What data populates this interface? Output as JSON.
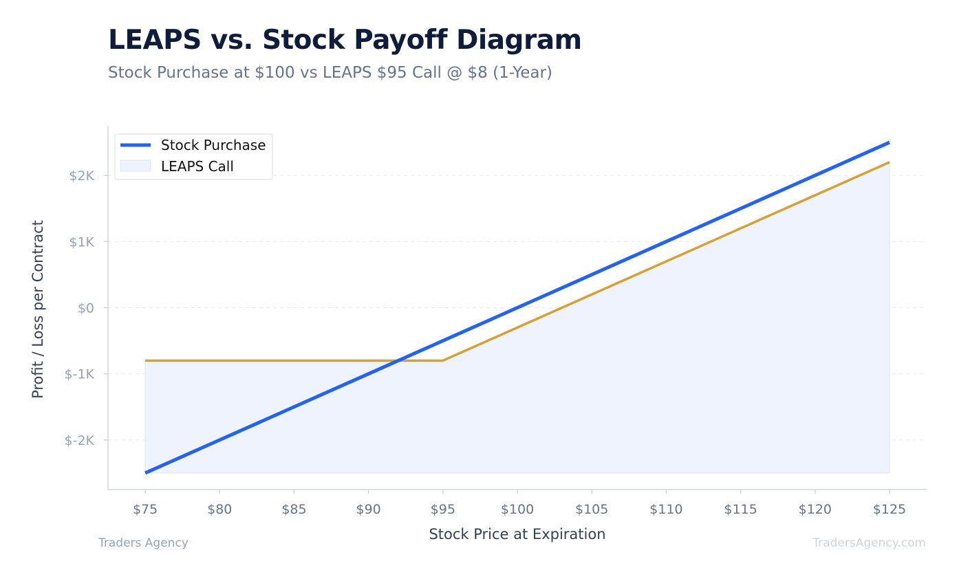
{
  "header": {
    "title": "LEAPS vs. Stock Payoff Diagram",
    "subtitle": "Stock Purchase at $100 vs LEAPS $95 Call @ $8 (1-Year)"
  },
  "footer": {
    "brand_left": "Traders Agency",
    "brand_right": "TradersAgency.com"
  },
  "colors": {
    "stock_line": "#2563eb",
    "leaps_line": "#d4a03a",
    "leaps_fill": "#eef3fd",
    "grid": "#e5e7eb",
    "axis": "#cbd5e1"
  },
  "chart_data": {
    "type": "line",
    "xlabel": "Stock Price at Expiration",
    "ylabel": "Profit / Loss per Contract",
    "x": [
      75,
      80,
      85,
      90,
      95,
      100,
      105,
      110,
      115,
      120,
      125
    ],
    "xticklabels": [
      "$75",
      "$80",
      "$85",
      "$90",
      "$95",
      "$100",
      "$105",
      "$110",
      "$115",
      "$120",
      "$125"
    ],
    "yticks": [
      -2000,
      -1000,
      0,
      1000,
      2000
    ],
    "yticklabels": [
      "$-2K",
      "$-1K",
      "$0",
      "$1K",
      "$2K"
    ],
    "xlim": [
      72.5,
      127.5
    ],
    "ylim": [
      -2750,
      2750
    ],
    "grid": true,
    "legend_position": "top-left",
    "series": [
      {
        "name": "Stock Purchase",
        "style": "line",
        "values": [
          -2500,
          -2000,
          -1500,
          -1000,
          -500,
          0,
          500,
          1000,
          1500,
          2000,
          2500
        ]
      },
      {
        "name": "LEAPS Call",
        "style": "filled-area",
        "values": [
          -800,
          -800,
          -800,
          -800,
          -800,
          -300,
          200,
          700,
          1200,
          1700,
          2200
        ]
      }
    ]
  }
}
